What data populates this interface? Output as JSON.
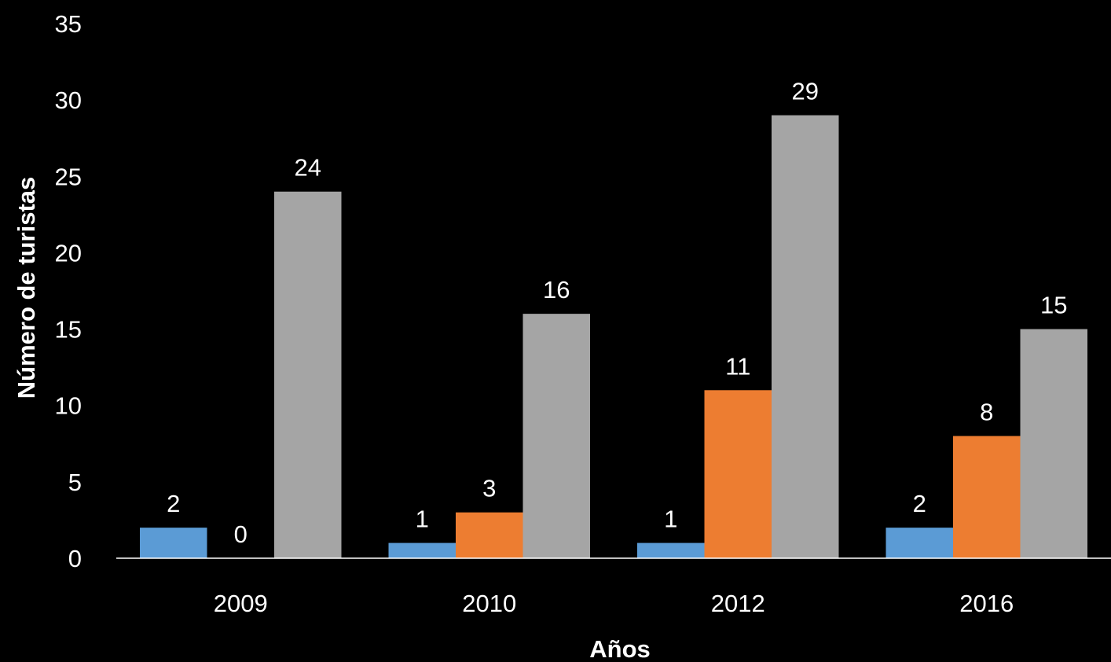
{
  "chart_data": {
    "type": "bar",
    "title": "",
    "xlabel": "Años",
    "ylabel": "Número de turistas",
    "categories": [
      "2009",
      "2010",
      "2012",
      "2016"
    ],
    "series": [
      {
        "values": [
          2,
          1,
          1,
          2
        ],
        "color": "#5B9BD5"
      },
      {
        "values": [
          0,
          3,
          11,
          8
        ],
        "color": "#ED7D31"
      },
      {
        "values": [
          24,
          16,
          29,
          15
        ],
        "color": "#A5A5A5"
      }
    ],
    "ylim": [
      0,
      35
    ],
    "yticks": [
      0,
      5,
      10,
      15,
      20,
      25,
      30,
      35
    ],
    "grid": false,
    "legend": "none",
    "data_labels": true,
    "background_color": "#000000",
    "text_color": "#FFFFFF",
    "axis_color": "#FFFFFF"
  }
}
